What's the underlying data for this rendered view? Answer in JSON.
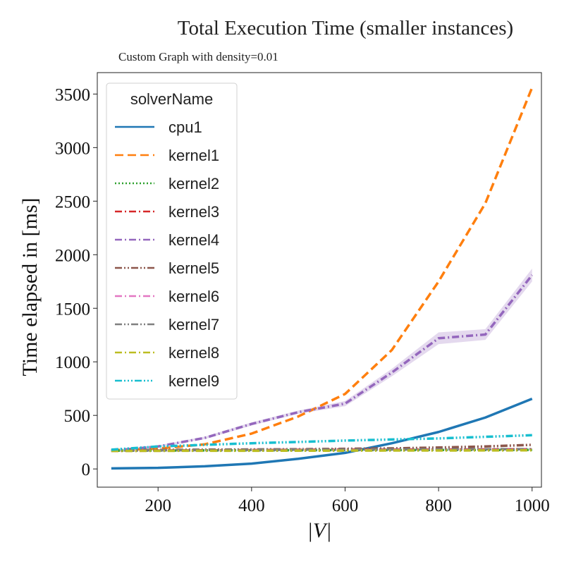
{
  "chart_data": {
    "type": "line",
    "title": "Total Execution Time (smaller instances)",
    "subtitle": "Custom Graph with density=0.01",
    "xlabel": "|V|",
    "ylabel": "Time elapsed in [ms]",
    "xlim": [
      70,
      1020
    ],
    "ylim": [
      -170,
      3700
    ],
    "xticks": [
      200,
      400,
      600,
      800,
      1000
    ],
    "yticks": [
      0,
      500,
      1000,
      1500,
      2000,
      2500,
      3000,
      3500
    ],
    "legend_title": "solverName",
    "legend_position": "upper-left",
    "grid": false,
    "x": [
      100,
      200,
      300,
      400,
      500,
      600,
      700,
      800,
      900,
      1000
    ],
    "series": [
      {
        "name": "cpu1",
        "color": "#1f77b4",
        "dash": "solid",
        "values": [
          5,
          10,
          25,
          50,
          95,
          150,
          240,
          345,
          480,
          655
        ]
      },
      {
        "name": "kernel1",
        "color": "#ff7f0e",
        "dash": "dashed",
        "values": [
          175,
          190,
          230,
          330,
          490,
          700,
          1110,
          1750,
          2480,
          3560
        ]
      },
      {
        "name": "kernel2",
        "color": "#2ca02c",
        "dash": "dotted",
        "values": [
          170,
          172,
          173,
          174,
          175,
          176,
          176,
          177,
          177,
          178
        ]
      },
      {
        "name": "kernel3",
        "color": "#d62728",
        "dash": "dashdot",
        "values": [
          170,
          172,
          174,
          176,
          178,
          180,
          180,
          181,
          182,
          183
        ]
      },
      {
        "name": "kernel4",
        "color": "#9467bd",
        "dash": "dashdot",
        "values": [
          170,
          210,
          290,
          420,
          530,
          610,
          900,
          1220,
          1255,
          1810
        ],
        "band": [
          [
            5,
            5
          ],
          [
            10,
            10
          ],
          [
            12,
            12
          ],
          [
            15,
            15
          ],
          [
            15,
            15
          ],
          [
            25,
            25
          ],
          [
            35,
            35
          ],
          [
            55,
            55
          ],
          [
            50,
            50
          ],
          [
            60,
            60
          ]
        ]
      },
      {
        "name": "kernel5",
        "color": "#8c564b",
        "dash": "dashdotdot",
        "values": [
          175,
          178,
          180,
          182,
          184,
          188,
          192,
          200,
          210,
          225
        ]
      },
      {
        "name": "kernel6",
        "color": "#e377c2",
        "dash": "dashdot",
        "values": [
          168,
          170,
          171,
          172,
          173,
          174,
          175,
          176,
          176,
          177
        ]
      },
      {
        "name": "kernel7",
        "color": "#7f7f7f",
        "dash": "dashdotdot",
        "values": [
          172,
          174,
          176,
          178,
          180,
          181,
          182,
          183,
          184,
          185
        ]
      },
      {
        "name": "kernel8",
        "color": "#bcbd22",
        "dash": "dashdot",
        "values": [
          168,
          169,
          170,
          170,
          171,
          171,
          172,
          172,
          173,
          174
        ]
      },
      {
        "name": "kernel9",
        "color": "#17becf",
        "dash": "dashdotdotdot",
        "values": [
          180,
          210,
          225,
          240,
          252,
          265,
          275,
          285,
          300,
          315
        ]
      }
    ]
  }
}
